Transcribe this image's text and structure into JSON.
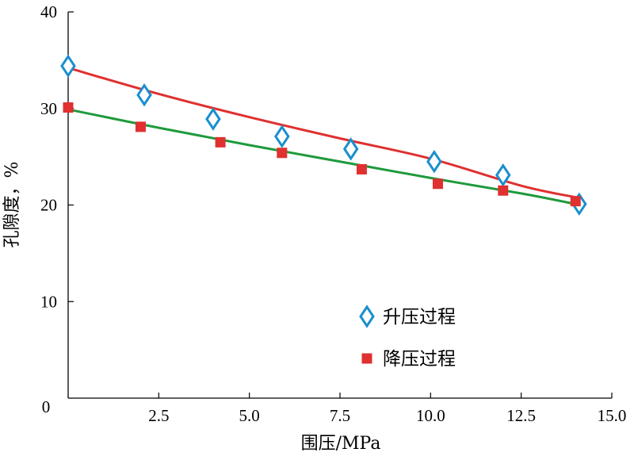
{
  "chart_data": {
    "type": "scatter",
    "xlabel": "围压/MPa",
    "ylabel": "孔隙度，%",
    "xlim": [
      0,
      15
    ],
    "ylim": [
      0,
      40
    ],
    "x_ticks": [
      "2.5",
      "5.0",
      "7.5",
      "10.0",
      "12.5",
      "15.0"
    ],
    "x_tick_values": [
      2.5,
      5.0,
      7.5,
      10.0,
      12.5,
      15.0
    ],
    "y_ticks": [
      "10",
      "20",
      "30",
      "40"
    ],
    "y_tick_values": [
      10,
      20,
      30,
      40
    ],
    "origin_label": "0",
    "grid": false,
    "legend_position": "bottom-right",
    "series": [
      {
        "name": "升压过程",
        "marker": "diamond-open",
        "color": "#1a8fce",
        "x": [
          0.0,
          2.1,
          4.0,
          5.9,
          7.8,
          10.1,
          12.0,
          14.1
        ],
        "y": [
          34.4,
          31.4,
          28.9,
          27.1,
          25.8,
          24.5,
          23.1,
          20.1
        ]
      },
      {
        "name": "降压过程",
        "marker": "square-filled",
        "color": "#e03030",
        "x": [
          0.0,
          2.0,
          4.2,
          5.9,
          8.1,
          10.2,
          12.0,
          14.0
        ],
        "y": [
          30.1,
          28.1,
          26.5,
          25.4,
          23.7,
          22.2,
          21.5,
          20.4
        ]
      }
    ],
    "trendlines": [
      {
        "series": "升压过程",
        "color": "#e03030",
        "x": [
          0.0,
          2.5,
          5.0,
          7.5,
          10.0,
          12.5,
          14.0
        ],
        "y": [
          34.2,
          31.5,
          29.1,
          26.9,
          24.8,
          22.0,
          20.8
        ]
      },
      {
        "series": "降压过程",
        "color": "#1f9a3c",
        "x": [
          0.0,
          2.5,
          5.0,
          7.5,
          10.0,
          12.5,
          14.0
        ],
        "y": [
          29.9,
          28.0,
          26.2,
          24.5,
          22.8,
          21.2,
          20.1
        ]
      }
    ]
  }
}
